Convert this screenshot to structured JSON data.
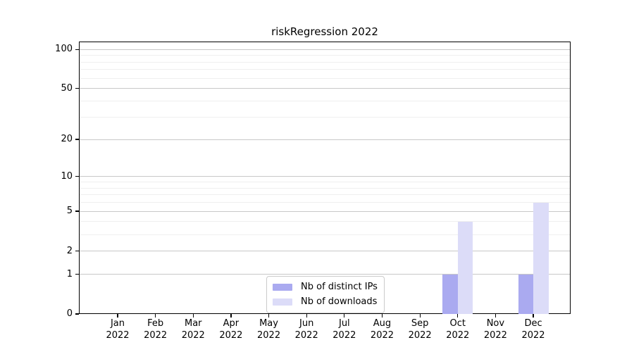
{
  "chart_data": {
    "type": "bar",
    "title": "riskRegression 2022",
    "x": {
      "months": [
        "Jan",
        "Feb",
        "Mar",
        "Apr",
        "May",
        "Jun",
        "Jul",
        "Aug",
        "Sep",
        "Oct",
        "Nov",
        "Dec"
      ],
      "year": "2022"
    },
    "y_axis": {
      "scale": "log1p",
      "tick_values": [
        0,
        1,
        2,
        5,
        10,
        20,
        50,
        100
      ],
      "minor_gridline_values": [
        3,
        4,
        6,
        7,
        8,
        9,
        30,
        40,
        60,
        70,
        80,
        90
      ],
      "ylim": [
        0,
        115
      ]
    },
    "series": [
      {
        "name": "Nb of distinct IPs",
        "color": "#aaaaf0",
        "values": [
          0,
          0,
          0,
          0,
          0,
          0,
          0,
          0,
          0,
          1,
          0,
          1
        ]
      },
      {
        "name": "Nb of downloads",
        "color": "#dcdcf8",
        "values": [
          0,
          0,
          0,
          0,
          0,
          0,
          0,
          0,
          0,
          4,
          0,
          6
        ]
      }
    ],
    "legend": {
      "position": "lower-center",
      "entries": [
        "Nb of distinct IPs",
        "Nb of downloads"
      ]
    },
    "grid": "on",
    "colors": {
      "major_grid": "#c8c8c8",
      "minor_grid": "#efefef",
      "spine": "#000000",
      "legend_border": "#cbcbcb",
      "background": "#ffffff"
    }
  }
}
